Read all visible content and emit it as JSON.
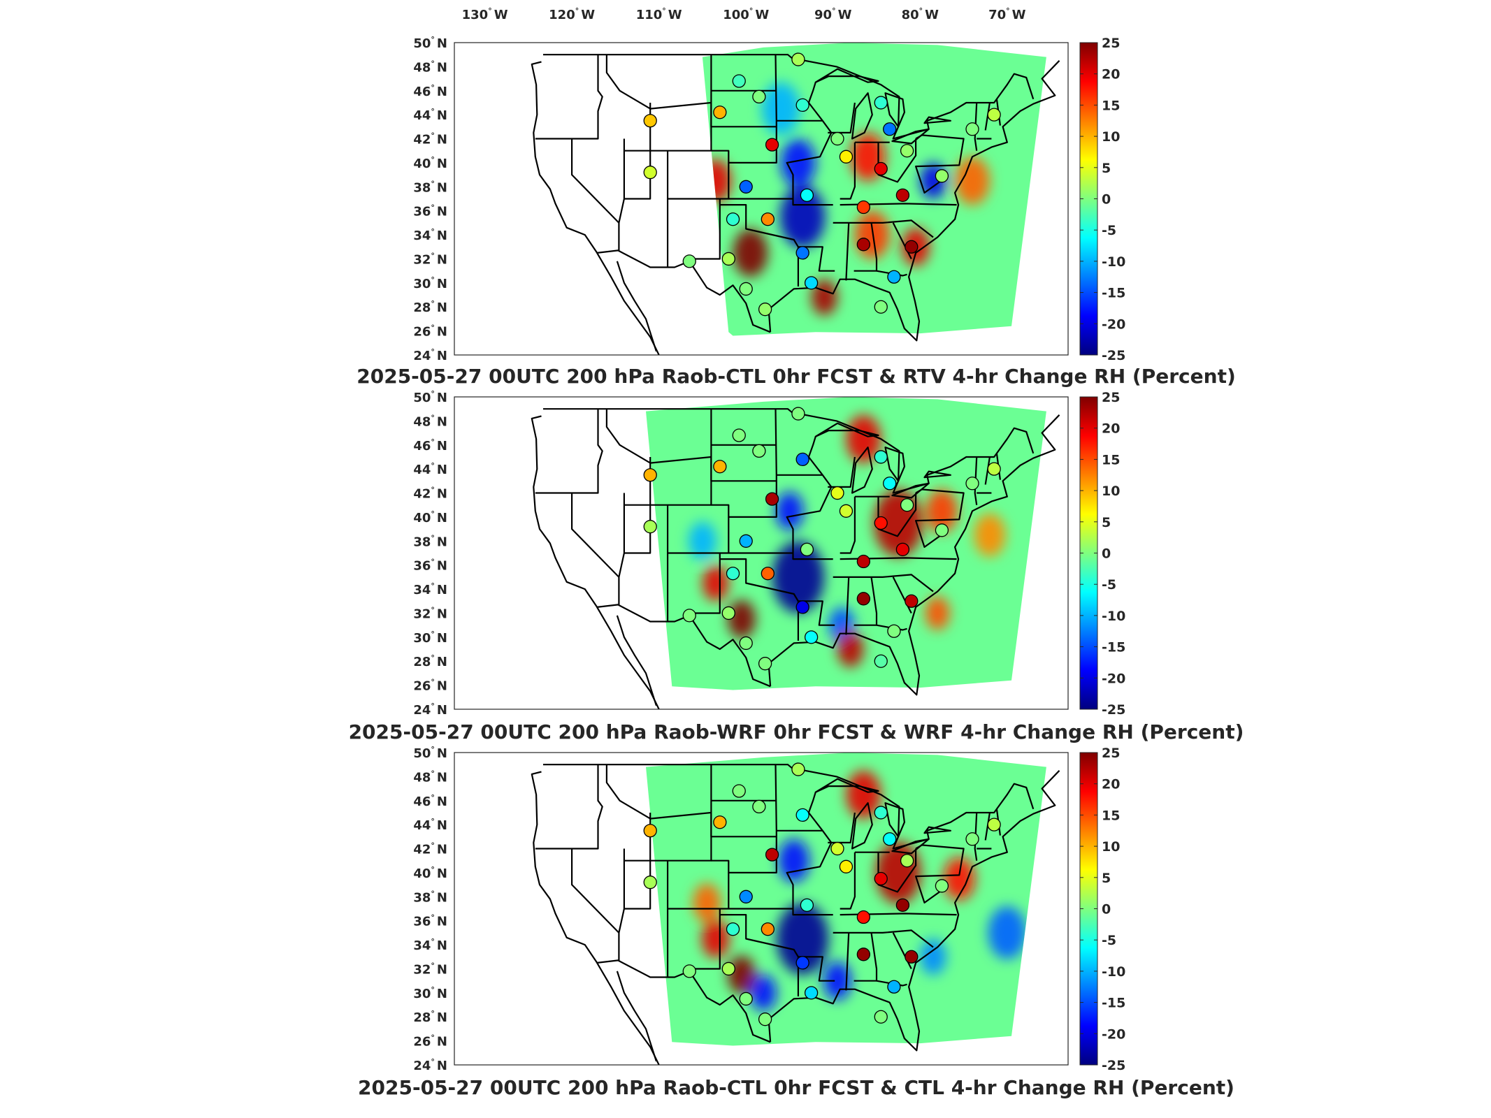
{
  "top_lon_labels": [
    "130",
    "120",
    "110",
    "100",
    "90",
    "80",
    "70"
  ],
  "lon_suffix": "W",
  "lat_labels": [
    "50",
    "48",
    "46",
    "44",
    "42",
    "40",
    "38",
    "36",
    "34",
    "32",
    "30",
    "28",
    "26",
    "24"
  ],
  "lat_suffix": "N",
  "colorbar": {
    "ticks": [
      "25",
      "20",
      "15",
      "10",
      "5",
      "0",
      "-5",
      "-10",
      "-15",
      "-20",
      "-25"
    ],
    "min": -25,
    "max": 25,
    "colormap": "jet"
  },
  "panels": [
    {
      "title": "2025-05-27 00UTC 200 hPa Raob-CTL 0hr FCST & RTV 4-hr Change RH (Percent)",
      "stations": [
        {
          "lon": -111.0,
          "lat": 43.5,
          "v": 9
        },
        {
          "lon": -111.0,
          "lat": 39.2,
          "v": 4
        },
        {
          "lon": -100.8,
          "lat": 46.8,
          "v": -3
        },
        {
          "lon": -103.0,
          "lat": 44.2,
          "v": 10
        },
        {
          "lon": -98.5,
          "lat": 45.5,
          "v": 0
        },
        {
          "lon": -93.5,
          "lat": 44.8,
          "v": -4
        },
        {
          "lon": -94.0,
          "lat": 48.6,
          "v": 2
        },
        {
          "lon": -97.0,
          "lat": 41.5,
          "v": 20
        },
        {
          "lon": -100.0,
          "lat": 38.0,
          "v": -14
        },
        {
          "lon": -97.5,
          "lat": 35.3,
          "v": 12
        },
        {
          "lon": -101.5,
          "lat": 35.3,
          "v": -4
        },
        {
          "lon": -93.0,
          "lat": 37.3,
          "v": -6
        },
        {
          "lon": -89.5,
          "lat": 42.0,
          "v": 0
        },
        {
          "lon": -88.5,
          "lat": 40.5,
          "v": 7
        },
        {
          "lon": -84.5,
          "lat": 45.0,
          "v": -4
        },
        {
          "lon": -83.5,
          "lat": 42.8,
          "v": -13
        },
        {
          "lon": -84.5,
          "lat": 39.5,
          "v": 20
        },
        {
          "lon": -81.5,
          "lat": 41.0,
          "v": 1
        },
        {
          "lon": -82.0,
          "lat": 37.3,
          "v": 22
        },
        {
          "lon": -86.5,
          "lat": 36.3,
          "v": 16
        },
        {
          "lon": -86.5,
          "lat": 33.2,
          "v": 23
        },
        {
          "lon": -81.0,
          "lat": 33.0,
          "v": 24
        },
        {
          "lon": -83.0,
          "lat": 30.5,
          "v": -10
        },
        {
          "lon": -84.5,
          "lat": 28.0,
          "v": 0
        },
        {
          "lon": -93.5,
          "lat": 32.5,
          "v": -13
        },
        {
          "lon": -92.5,
          "lat": 30.0,
          "v": -8
        },
        {
          "lon": -97.8,
          "lat": 27.8,
          "v": 1
        },
        {
          "lon": -100.0,
          "lat": 29.5,
          "v": 0
        },
        {
          "lon": -102.0,
          "lat": 32.0,
          "v": 2
        },
        {
          "lon": -106.5,
          "lat": 31.8,
          "v": 0
        },
        {
          "lon": -77.5,
          "lat": 38.9,
          "v": 1
        },
        {
          "lon": -74.0,
          "lat": 42.8,
          "v": 0
        },
        {
          "lon": -71.5,
          "lat": 44.0,
          "v": 3
        }
      ],
      "blobs": [
        {
          "lon": -99.5,
          "lat": 32.5,
          "r": 2.0,
          "v": 25
        },
        {
          "lon": -103.5,
          "lat": 38.5,
          "r": 1.8,
          "v": 20
        },
        {
          "lon": -93.5,
          "lat": 35.5,
          "r": 2.6,
          "v": -22
        },
        {
          "lon": -94.0,
          "lat": 40.0,
          "r": 2.0,
          "v": -18
        },
        {
          "lon": -86.0,
          "lat": 40.5,
          "r": 2.0,
          "v": 18
        },
        {
          "lon": -78.5,
          "lat": 38.5,
          "r": 1.5,
          "v": -20
        },
        {
          "lon": -74.0,
          "lat": 38.5,
          "r": 2.0,
          "v": 14
        },
        {
          "lon": -85.5,
          "lat": 34.0,
          "r": 2.0,
          "v": 16
        },
        {
          "lon": -91.0,
          "lat": 28.8,
          "r": 1.5,
          "v": 23
        },
        {
          "lon": -80.5,
          "lat": 33.0,
          "r": 1.6,
          "v": 20
        },
        {
          "lon": -96.0,
          "lat": 44.5,
          "r": 2.2,
          "v": -10
        }
      ]
    },
    {
      "title": "2025-05-27 00UTC 200 hPa Raob-WRF 0hr FCST & WRF 4-hr Change RH (Percent)",
      "stations": [
        {
          "lon": -111.0,
          "lat": 43.5,
          "v": 10
        },
        {
          "lon": -111.0,
          "lat": 39.2,
          "v": 2
        },
        {
          "lon": -100.8,
          "lat": 46.8,
          "v": 0
        },
        {
          "lon": -103.0,
          "lat": 44.2,
          "v": 10
        },
        {
          "lon": -98.5,
          "lat": 45.5,
          "v": 0
        },
        {
          "lon": -93.5,
          "lat": 44.8,
          "v": -14
        },
        {
          "lon": -94.0,
          "lat": 48.6,
          "v": 0
        },
        {
          "lon": -97.0,
          "lat": 41.5,
          "v": 23
        },
        {
          "lon": -100.0,
          "lat": 38.0,
          "v": -10
        },
        {
          "lon": -97.5,
          "lat": 35.3,
          "v": 14
        },
        {
          "lon": -101.5,
          "lat": 35.3,
          "v": -4
        },
        {
          "lon": -93.0,
          "lat": 37.3,
          "v": 0
        },
        {
          "lon": -89.5,
          "lat": 42.0,
          "v": 5
        },
        {
          "lon": -88.5,
          "lat": 40.5,
          "v": 4
        },
        {
          "lon": -84.5,
          "lat": 45.0,
          "v": -4
        },
        {
          "lon": -83.5,
          "lat": 42.8,
          "v": -6
        },
        {
          "lon": -84.5,
          "lat": 39.5,
          "v": 18
        },
        {
          "lon": -81.5,
          "lat": 41.0,
          "v": 0
        },
        {
          "lon": -82.0,
          "lat": 37.3,
          "v": 20
        },
        {
          "lon": -86.5,
          "lat": 36.3,
          "v": 22
        },
        {
          "lon": -86.5,
          "lat": 33.2,
          "v": 24
        },
        {
          "lon": -81.0,
          "lat": 33.0,
          "v": 22
        },
        {
          "lon": -83.0,
          "lat": 30.5,
          "v": 0
        },
        {
          "lon": -84.5,
          "lat": 28.0,
          "v": -2
        },
        {
          "lon": -93.5,
          "lat": 32.5,
          "v": -20
        },
        {
          "lon": -92.5,
          "lat": 30.0,
          "v": -6
        },
        {
          "lon": -97.8,
          "lat": 27.8,
          "v": 0
        },
        {
          "lon": -100.0,
          "lat": 29.5,
          "v": 0
        },
        {
          "lon": -102.0,
          "lat": 32.0,
          "v": 1
        },
        {
          "lon": -106.5,
          "lat": 31.8,
          "v": 0
        },
        {
          "lon": -77.5,
          "lat": 38.9,
          "v": 0
        },
        {
          "lon": -74.0,
          "lat": 42.8,
          "v": 0
        },
        {
          "lon": -71.5,
          "lat": 44.0,
          "v": 3
        }
      ],
      "blobs": [
        {
          "lon": -100.5,
          "lat": 31.5,
          "r": 1.6,
          "v": 25
        },
        {
          "lon": -103.5,
          "lat": 34.5,
          "r": 1.5,
          "v": 20
        },
        {
          "lon": -94.0,
          "lat": 35.0,
          "r": 3.0,
          "v": -24
        },
        {
          "lon": -95.0,
          "lat": 40.5,
          "r": 1.6,
          "v": -18
        },
        {
          "lon": -82.5,
          "lat": 39.5,
          "r": 2.8,
          "v": 22
        },
        {
          "lon": -86.5,
          "lat": 46.5,
          "r": 2.0,
          "v": 20
        },
        {
          "lon": -77.5,
          "lat": 40.5,
          "r": 1.8,
          "v": 16
        },
        {
          "lon": -72.0,
          "lat": 38.5,
          "r": 1.8,
          "v": 12
        },
        {
          "lon": -89.0,
          "lat": 31.0,
          "r": 1.5,
          "v": -15
        },
        {
          "lon": -88.0,
          "lat": 29.0,
          "r": 1.5,
          "v": 22
        },
        {
          "lon": -105.0,
          "lat": 38.0,
          "r": 1.6,
          "v": -10
        },
        {
          "lon": -78.0,
          "lat": 32.0,
          "r": 1.4,
          "v": 15
        }
      ]
    },
    {
      "title": "2025-05-27 00UTC 200 hPa Raob-CTL 0hr FCST & CTL 4-hr Change RH (Percent)",
      "stations": [
        {
          "lon": -111.0,
          "lat": 43.5,
          "v": 10
        },
        {
          "lon": -111.0,
          "lat": 39.2,
          "v": 2
        },
        {
          "lon": -100.8,
          "lat": 46.8,
          "v": 0
        },
        {
          "lon": -103.0,
          "lat": 44.2,
          "v": 10
        },
        {
          "lon": -98.5,
          "lat": 45.5,
          "v": 0
        },
        {
          "lon": -93.5,
          "lat": 44.8,
          "v": -6
        },
        {
          "lon": -94.0,
          "lat": 48.6,
          "v": 2
        },
        {
          "lon": -97.0,
          "lat": 41.5,
          "v": 22
        },
        {
          "lon": -100.0,
          "lat": 38.0,
          "v": -12
        },
        {
          "lon": -97.5,
          "lat": 35.3,
          "v": 12
        },
        {
          "lon": -101.5,
          "lat": 35.3,
          "v": -4
        },
        {
          "lon": -93.0,
          "lat": 37.3,
          "v": -4
        },
        {
          "lon": -89.5,
          "lat": 42.0,
          "v": 4
        },
        {
          "lon": -88.5,
          "lat": 40.5,
          "v": 7
        },
        {
          "lon": -84.5,
          "lat": 45.0,
          "v": -4
        },
        {
          "lon": -83.5,
          "lat": 42.8,
          "v": -6
        },
        {
          "lon": -84.5,
          "lat": 39.5,
          "v": 20
        },
        {
          "lon": -81.5,
          "lat": 41.0,
          "v": 2
        },
        {
          "lon": -82.0,
          "lat": 37.3,
          "v": 24
        },
        {
          "lon": -86.5,
          "lat": 36.3,
          "v": 18
        },
        {
          "lon": -86.5,
          "lat": 33.2,
          "v": 24
        },
        {
          "lon": -81.0,
          "lat": 33.0,
          "v": 24
        },
        {
          "lon": -83.0,
          "lat": 30.5,
          "v": -10
        },
        {
          "lon": -84.5,
          "lat": 28.0,
          "v": 0
        },
        {
          "lon": -93.5,
          "lat": 32.5,
          "v": -16
        },
        {
          "lon": -92.5,
          "lat": 30.0,
          "v": -8
        },
        {
          "lon": -97.8,
          "lat": 27.8,
          "v": 0
        },
        {
          "lon": -100.0,
          "lat": 29.5,
          "v": 0
        },
        {
          "lon": -102.0,
          "lat": 32.0,
          "v": 2
        },
        {
          "lon": -106.5,
          "lat": 31.8,
          "v": 0
        },
        {
          "lon": -77.5,
          "lat": 38.9,
          "v": 0
        },
        {
          "lon": -74.0,
          "lat": 42.8,
          "v": 0
        },
        {
          "lon": -71.5,
          "lat": 44.0,
          "v": 3
        }
      ],
      "blobs": [
        {
          "lon": -100.5,
          "lat": 31.5,
          "r": 1.6,
          "v": 25
        },
        {
          "lon": -103.5,
          "lat": 34.5,
          "r": 1.6,
          "v": 20
        },
        {
          "lon": -93.5,
          "lat": 34.5,
          "r": 3.0,
          "v": -24
        },
        {
          "lon": -94.5,
          "lat": 41.0,
          "r": 1.8,
          "v": -18
        },
        {
          "lon": -82.5,
          "lat": 40.0,
          "r": 2.6,
          "v": 22
        },
        {
          "lon": -86.5,
          "lat": 46.5,
          "r": 2.0,
          "v": 20
        },
        {
          "lon": -75.5,
          "lat": 39.5,
          "r": 1.8,
          "v": 18
        },
        {
          "lon": -70.0,
          "lat": 35.0,
          "r": 2.2,
          "v": -14
        },
        {
          "lon": -89.5,
          "lat": 31.0,
          "r": 1.6,
          "v": -18
        },
        {
          "lon": -98.0,
          "lat": 30.0,
          "r": 1.5,
          "v": -18
        },
        {
          "lon": -104.5,
          "lat": 37.5,
          "r": 1.6,
          "v": 14
        },
        {
          "lon": -78.5,
          "lat": 33.0,
          "r": 1.5,
          "v": -12
        }
      ]
    }
  ]
}
